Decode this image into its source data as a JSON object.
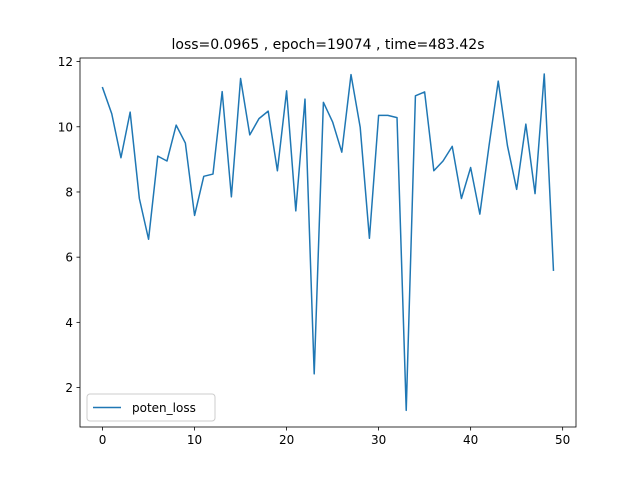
{
  "chart_data": {
    "type": "line",
    "title": "loss=0.0965 , epoch=19074 , time=483.42s",
    "xlabel": "",
    "ylabel": "",
    "xlim": [
      -2.45,
      51.45
    ],
    "ylim": [
      0.79,
      12.11
    ],
    "x_ticks": [
      0,
      10,
      20,
      30,
      40,
      50
    ],
    "y_ticks": [
      2,
      4,
      6,
      8,
      10,
      12
    ],
    "grid": false,
    "legend_position": "lower-left",
    "series": [
      {
        "name": "poten_loss",
        "color": "#1f77b4",
        "x": [
          0,
          1,
          2,
          3,
          4,
          5,
          6,
          7,
          8,
          9,
          10,
          11,
          12,
          13,
          14,
          15,
          16,
          17,
          18,
          19,
          20,
          21,
          22,
          23,
          24,
          25,
          26,
          27,
          28,
          29,
          30,
          31,
          32,
          33,
          34,
          35,
          36,
          37,
          38,
          39,
          40,
          41,
          42,
          43,
          44,
          45,
          46,
          47,
          48,
          49
        ],
        "y": [
          11.2,
          10.4,
          9.05,
          10.45,
          7.8,
          6.55,
          9.1,
          8.95,
          10.05,
          9.5,
          7.28,
          8.48,
          8.55,
          11.08,
          7.85,
          11.48,
          9.75,
          10.25,
          10.48,
          8.65,
          11.1,
          7.42,
          10.85,
          2.42,
          10.75,
          10.15,
          9.22,
          11.6,
          9.98,
          6.58,
          10.35,
          10.35,
          10.28,
          1.3,
          10.95,
          11.07,
          8.65,
          8.95,
          9.4,
          7.8,
          8.75,
          7.32,
          9.42,
          11.4,
          9.42,
          8.08,
          10.08,
          7.95,
          11.62,
          5.6
        ]
      }
    ]
  }
}
